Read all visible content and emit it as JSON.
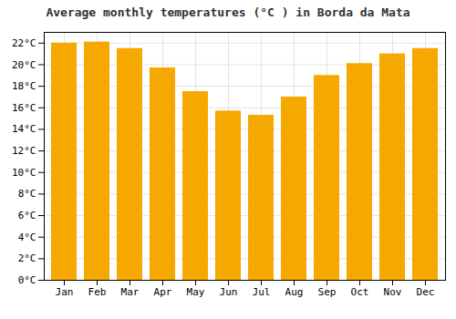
{
  "chart_data": {
    "type": "bar",
    "title": "Average monthly temperatures (°C ) in Borda da Mata",
    "categories": [
      "Jan",
      "Feb",
      "Mar",
      "Apr",
      "May",
      "Jun",
      "Jul",
      "Aug",
      "Sep",
      "Oct",
      "Nov",
      "Dec"
    ],
    "values": [
      22.0,
      22.1,
      21.5,
      19.7,
      17.5,
      15.7,
      15.3,
      17.0,
      19.0,
      20.1,
      21.0,
      21.5
    ],
    "color": "#F5A800",
    "ylim": [
      0,
      23
    ],
    "yticks": [
      {
        "value": 0,
        "label": "0°C"
      },
      {
        "value": 2,
        "label": "2°C"
      },
      {
        "value": 4,
        "label": "4°C"
      },
      {
        "value": 6,
        "label": "6°C"
      },
      {
        "value": 8,
        "label": "8°C"
      },
      {
        "value": 10,
        "label": "10°C"
      },
      {
        "value": 12,
        "label": "12°C"
      },
      {
        "value": 14,
        "label": "14°C"
      },
      {
        "value": 16,
        "label": "16°C"
      },
      {
        "value": 18,
        "label": "18°C"
      },
      {
        "value": 20,
        "label": "20°C"
      },
      {
        "value": 22,
        "label": "22°C"
      }
    ],
    "grid": true
  }
}
